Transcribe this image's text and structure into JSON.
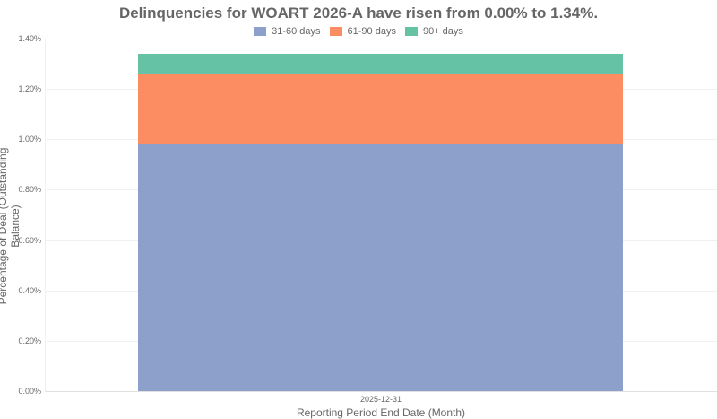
{
  "chart_data": {
    "type": "bar",
    "stacked": true,
    "title": "Delinquencies for WOART 2026-A have risen from 0.00% to 1.34%.",
    "xlabel": "Reporting Period End Date (Month)",
    "ylabel": "Percentage of Deal (Outstanding Balance)",
    "categories": [
      "2025-12-31"
    ],
    "series": [
      {
        "name": "31-60 days",
        "color": "#8da0cb",
        "values": [
          0.98
        ]
      },
      {
        "name": "61-90 days",
        "color": "#fc8d62",
        "values": [
          0.28
        ]
      },
      {
        "name": "90+ days",
        "color": "#66c2a5",
        "values": [
          0.08
        ]
      }
    ],
    "total": [
      1.34
    ],
    "ylim": [
      0,
      1.4
    ],
    "yticks": [
      "0.00%",
      "0.20%",
      "0.40%",
      "0.60%",
      "0.80%",
      "1.00%",
      "1.20%",
      "1.40%"
    ],
    "grid": true,
    "legend_position": "top"
  },
  "title": "Delinquencies for WOART 2026-A have risen from 0.00% to 1.34%.",
  "legend": [
    "31-60 days",
    "61-90 days",
    "90+ days"
  ],
  "xlabel": "Reporting Period End Date (Month)",
  "ylabel": "Percentage of Deal (Outstanding Balance)",
  "xtick": "2025-12-31"
}
